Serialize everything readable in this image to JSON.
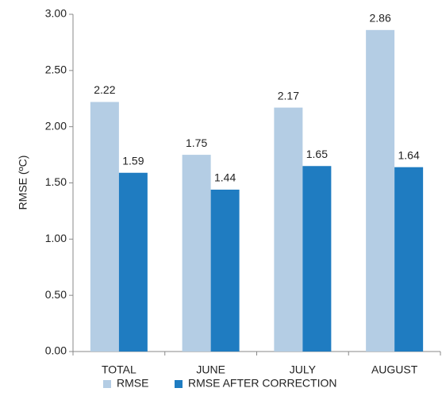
{
  "chart_data": {
    "type": "bar",
    "y_label": "RMSE (ºC)",
    "categories": [
      "TOTAL",
      "JUNE",
      "JULY",
      "AUGUST"
    ],
    "series": [
      {
        "name": "RMSE",
        "color": "#b4cde4",
        "values": [
          2.22,
          1.75,
          2.17,
          2.86
        ]
      },
      {
        "name": "RMSE AFTER CORRECTION",
        "color": "#1f7cc1",
        "values": [
          1.59,
          1.44,
          1.65,
          1.64
        ]
      }
    ],
    "ylim": [
      0,
      3
    ],
    "yticks": [
      {
        "value": 0,
        "label": "0.00"
      },
      {
        "value": 0.5,
        "label": "0.50"
      },
      {
        "value": 1,
        "label": "1.00"
      },
      {
        "value": 1.5,
        "label": "1.50"
      },
      {
        "value": 2,
        "label": "2.00"
      },
      {
        "value": 2.5,
        "label": "2.50"
      },
      {
        "value": 3,
        "label": "3.00"
      }
    ],
    "grid": false,
    "legend": "bottom"
  }
}
